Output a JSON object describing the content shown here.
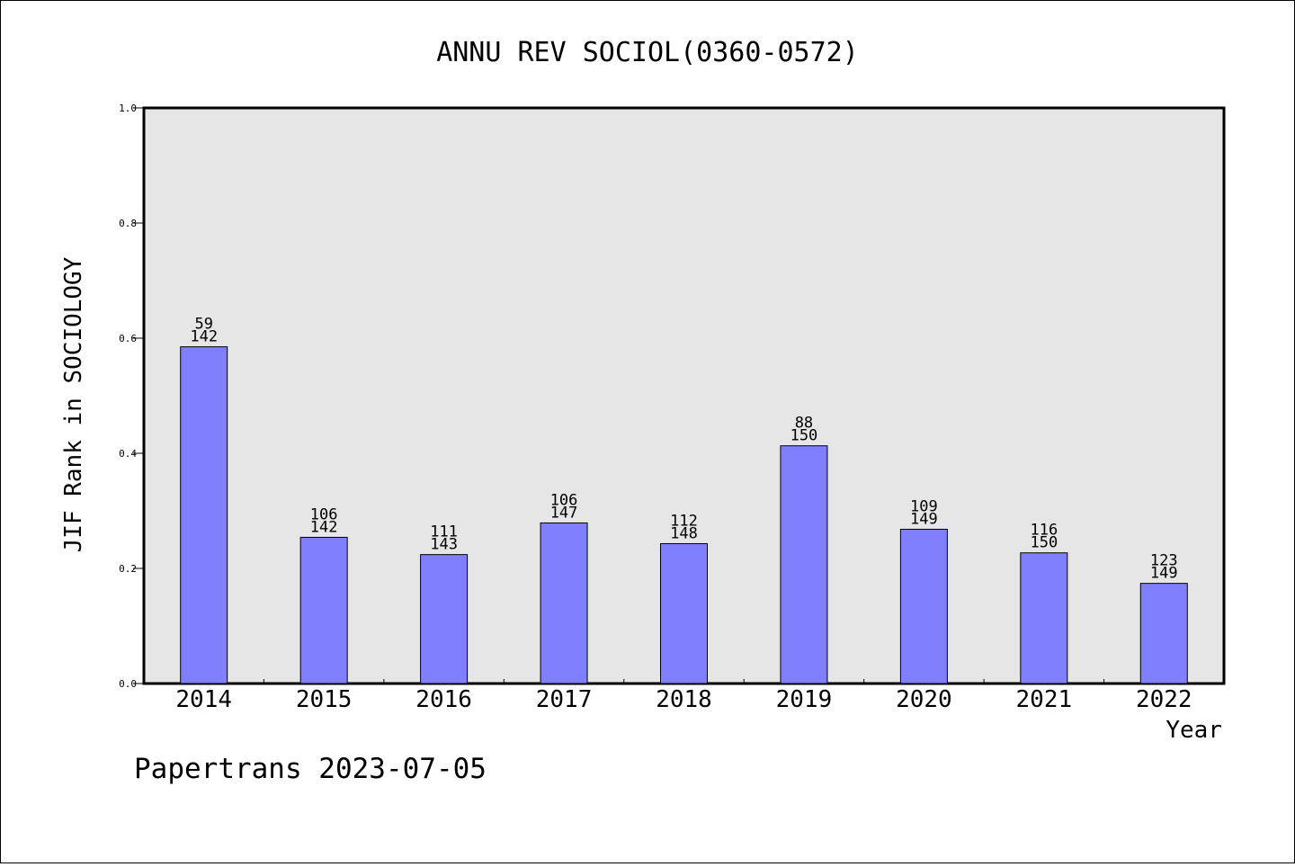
{
  "chart_data": {
    "type": "bar",
    "title": "ANNU REV SOCIOL(0360-0572)",
    "xlabel": "Year",
    "ylabel": "JIF Rank in SOCIOLOGY",
    "ylim": [
      0,
      1.0
    ],
    "yticks": [
      "0.0",
      "0.2",
      "0.4",
      "0.6",
      "0.8",
      "1.0"
    ],
    "grid": false,
    "categories": [
      "2014",
      "2015",
      "2016",
      "2017",
      "2018",
      "2019",
      "2020",
      "2021",
      "2022"
    ],
    "values": [
      0.585,
      0.254,
      0.224,
      0.279,
      0.243,
      0.413,
      0.268,
      0.227,
      0.174
    ],
    "rank": [
      "59",
      "106",
      "111",
      "106",
      "112",
      "88",
      "109",
      "116",
      "123"
    ],
    "total": [
      "142",
      "142",
      "143",
      "147",
      "148",
      "150",
      "149",
      "150",
      "149"
    ],
    "bar_color": "#8080ff",
    "plot_background": "#e6e6e6"
  },
  "footer": "Papertrans 2023-07-05"
}
